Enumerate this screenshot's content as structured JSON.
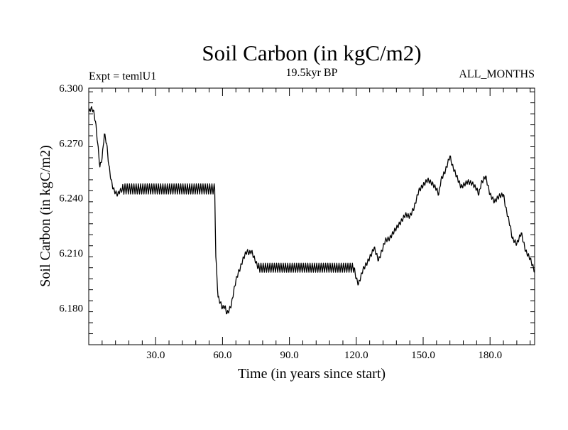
{
  "chart_data": {
    "type": "line",
    "title": "Soil Carbon (in kgC/m2)",
    "subtitle_left": "Expt = temlU1",
    "subtitle_center": "19.5kyr BP",
    "subtitle_right": "ALL_MONTHS",
    "xlabel": "Time (in years since start)",
    "ylabel": "Soil Carbon (in kgC/m2)",
    "xlim": [
      0,
      200
    ],
    "ylim": [
      6.16,
      6.3
    ],
    "x_ticks": [
      30,
      60,
      90,
      120,
      150,
      180
    ],
    "x_tick_labels": [
      "30.0",
      "60.0",
      "90.0",
      "120.0",
      "150.0",
      "180.0"
    ],
    "y_ticks": [
      6.18,
      6.21,
      6.24,
      6.27,
      6.3
    ],
    "y_tick_labels": [
      "6.180",
      "6.210",
      "6.240",
      "6.270",
      "6.300"
    ],
    "grid": false,
    "legend": "none",
    "line_color": "#000000",
    "series": [
      {
        "x": [
          0,
          1,
          2,
          3,
          4,
          5,
          6,
          7,
          8,
          9,
          10,
          11,
          12,
          13,
          14,
          16,
          20,
          25,
          30,
          35,
          40,
          45,
          50,
          55,
          56.5,
          57,
          58,
          59,
          60,
          61,
          62,
          63,
          64,
          65,
          66,
          67,
          68,
          69,
          70,
          71,
          72,
          73,
          74,
          75,
          76,
          80,
          85,
          90,
          95,
          100,
          105,
          110,
          115,
          119,
          120,
          121,
          122,
          123,
          125,
          127,
          128,
          130,
          132,
          133,
          135,
          137,
          140,
          142,
          144,
          146,
          148,
          150,
          152,
          154,
          156,
          157,
          158,
          160,
          162,
          163,
          165,
          167,
          170,
          172,
          174,
          175,
          176,
          178,
          180,
          182,
          184,
          186,
          187,
          189,
          190,
          192,
          194,
          196,
          198,
          200
        ],
        "y": [
          6.287,
          6.289,
          6.288,
          6.282,
          6.27,
          6.257,
          6.262,
          6.275,
          6.27,
          6.258,
          6.25,
          6.245,
          6.243,
          6.242,
          6.244,
          6.245,
          6.245,
          6.245,
          6.245,
          6.245,
          6.245,
          6.245,
          6.245,
          6.245,
          6.245,
          6.208,
          6.186,
          6.183,
          6.18,
          6.181,
          6.177,
          6.179,
          6.182,
          6.189,
          6.195,
          6.199,
          6.202,
          6.206,
          6.209,
          6.211,
          6.21,
          6.211,
          6.208,
          6.205,
          6.202,
          6.202,
          6.202,
          6.202,
          6.202,
          6.202,
          6.202,
          6.202,
          6.202,
          6.202,
          6.196,
          6.193,
          6.197,
          6.201,
          6.205,
          6.21,
          6.213,
          6.206,
          6.213,
          6.217,
          6.218,
          6.222,
          6.227,
          6.231,
          6.23,
          6.235,
          6.244,
          6.247,
          6.25,
          6.248,
          6.245,
          6.242,
          6.25,
          6.255,
          6.263,
          6.258,
          6.252,
          6.246,
          6.249,
          6.248,
          6.245,
          6.242,
          6.248,
          6.252,
          6.242,
          6.238,
          6.241,
          6.242,
          6.235,
          6.225,
          6.218,
          6.215,
          6.221,
          6.211,
          6.207,
          6.2
        ]
      }
    ]
  }
}
